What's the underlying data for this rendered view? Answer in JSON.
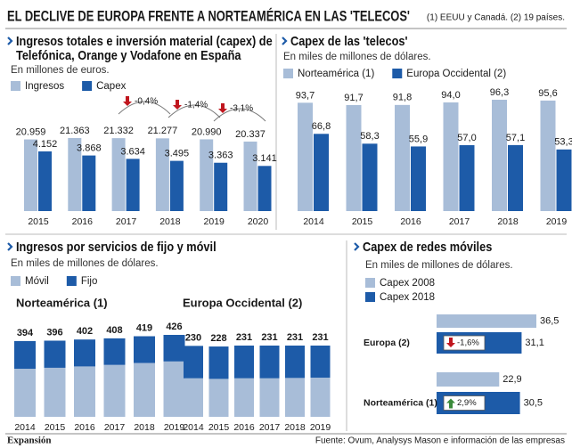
{
  "header": {
    "title": "EL DECLIVE DE EUROPA FRENTE A NORTEAMÉRICA EN LAS 'TELECOS'",
    "note": "(1) EEUU y Canadá. (2) 19 países."
  },
  "chart_data": [
    {
      "type": "grouped_bar",
      "title": "Ingresos totales e inversión material (capex) de Telefónica, Orange y Vodafone en España",
      "subtitle": "En millones de euros.",
      "independent_scales": true,
      "categories": [
        "2015",
        "2016",
        "2017",
        "2018",
        "2019",
        "2020"
      ],
      "series": [
        {
          "name": "Ingresos",
          "color": "#a8bdd8",
          "values": [
            20959,
            21363,
            21332,
            21277,
            20990,
            20337
          ],
          "value_labels": [
            "20.959",
            "21.363",
            "21.332",
            "21.277",
            "20.990",
            "20.337"
          ]
        },
        {
          "name": "Capex",
          "color": "#1d5ba8",
          "values": [
            4152,
            3868,
            3634,
            3495,
            3363,
            3141
          ],
          "value_labels": [
            "4.152",
            "3.868",
            "3.634",
            "3.495",
            "3.363",
            "3.141"
          ]
        }
      ],
      "annotations": [
        {
          "text": "-0,4%",
          "direction": "down"
        },
        {
          "text": "-1,4%",
          "direction": "down"
        },
        {
          "text": "-3,1%",
          "direction": "down"
        }
      ]
    },
    {
      "type": "grouped_bar",
      "title": "Capex de las 'telecos'",
      "subtitle": "En miles de millones de dólares.",
      "independent_scales": false,
      "categories": [
        "2014",
        "2015",
        "2016",
        "2017",
        "2018",
        "2019"
      ],
      "series": [
        {
          "name": "Norteamérica (1)",
          "color": "#a8bdd8",
          "values": [
            93.7,
            91.7,
            91.8,
            94.0,
            96.3,
            95.6
          ],
          "value_labels": [
            "93,7",
            "91,7",
            "91,8",
            "94,0",
            "96,3",
            "95,6"
          ]
        },
        {
          "name": "Europa Occidental (2)",
          "color": "#1d5ba8",
          "values": [
            66.8,
            58.3,
            55.9,
            57.0,
            57.1,
            53.3
          ],
          "value_labels": [
            "66,8",
            "58,3",
            "55,9",
            "57,0",
            "57,1",
            "53,3"
          ]
        }
      ]
    },
    {
      "type": "stacked_bar_panels",
      "title": "Ingresos por servicios de fijo y móvil",
      "subtitle": "En miles de millones de dólares.",
      "legend": [
        {
          "name": "Móvil",
          "color": "#a8bdd8"
        },
        {
          "name": "Fijo",
          "color": "#1d5ba8"
        }
      ],
      "panels": [
        {
          "title": "Norteamérica (1)",
          "categories": [
            "2014",
            "2015",
            "2016",
            "2017",
            "2018",
            "2019"
          ],
          "series": [
            {
              "values": [
                250,
                255,
                262,
                270,
                280,
                288
              ]
            },
            {
              "values": [
                144,
                141,
                140,
                138,
                139,
                138
              ]
            }
          ],
          "totals": [
            394,
            396,
            402,
            408,
            419,
            426
          ]
        },
        {
          "title": "Europa Occidental (2)",
          "categories": [
            "2014",
            "2015",
            "2016",
            "2017",
            "2018",
            "2019"
          ],
          "series": [
            {
              "values": [
                125,
                123,
                125,
                125,
                126,
                127
              ]
            },
            {
              "values": [
                105,
                105,
                106,
                106,
                105,
                104
              ]
            }
          ],
          "totals": [
            230,
            228,
            231,
            231,
            231,
            231
          ]
        }
      ]
    },
    {
      "type": "hbar",
      "title": "Capex de redes móviles",
      "subtitle": "En miles de millones de dólares.",
      "categories": [
        "Europa (2)",
        "Norteamérica (1)"
      ],
      "series": [
        {
          "name": "Capex 2008",
          "color": "#a8bdd8",
          "values": [
            36.5,
            22.9
          ],
          "value_labels": [
            "36,5",
            "22,9"
          ]
        },
        {
          "name": "Capex 2018",
          "color": "#1d5ba8",
          "values": [
            31.1,
            30.5
          ],
          "value_labels": [
            "31,1",
            "30,5"
          ]
        }
      ],
      "annotations": [
        {
          "text": "-1,6%",
          "direction": "down"
        },
        {
          "text": "2,9%",
          "direction": "up"
        }
      ]
    }
  ],
  "footer": {
    "logo": "Expansión",
    "source": "Fuente: Ovum, Analysys Mason e información de las empresas"
  }
}
